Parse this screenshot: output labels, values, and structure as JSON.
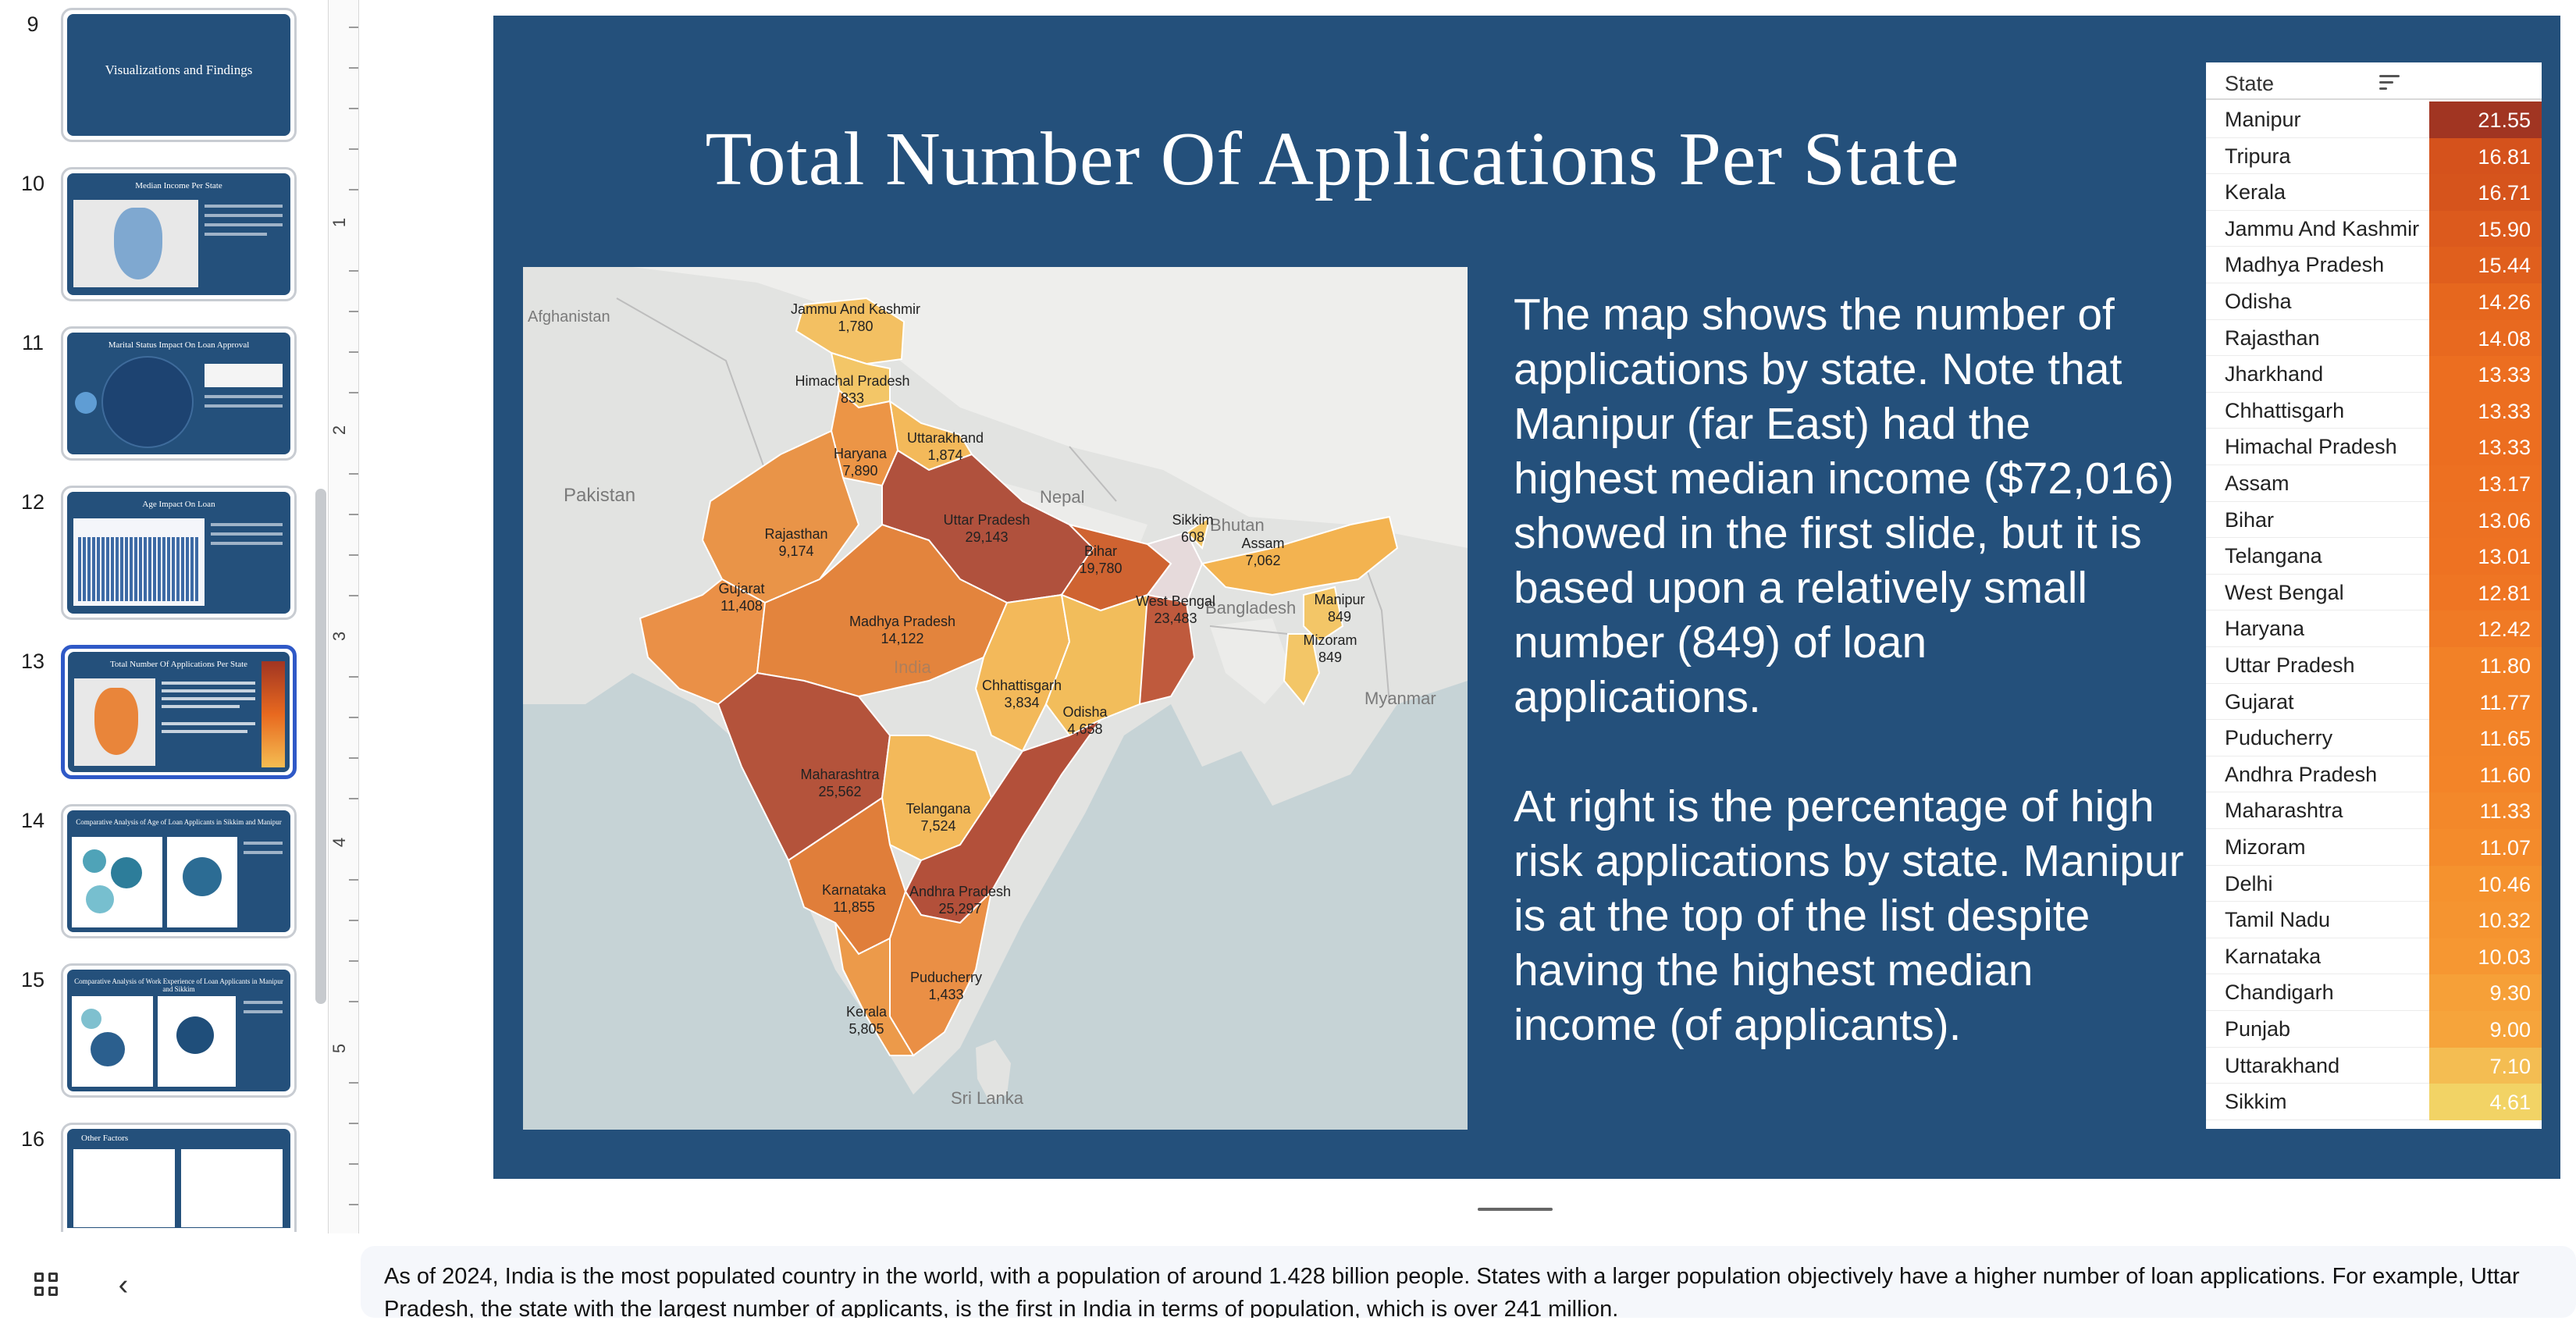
{
  "thumbnails": [
    {
      "num": "9",
      "title": "Visualizations and Findings"
    },
    {
      "num": "10",
      "title": "Median Income Per State"
    },
    {
      "num": "11",
      "title": "Marital Status Impact On Loan Approval"
    },
    {
      "num": "12",
      "title": "Age Impact On Loan"
    },
    {
      "num": "13",
      "title": "Total Number Of Applications Per State"
    },
    {
      "num": "14",
      "title": "Comparative Analysis of Age of Loan Applicants in Sikkim and Manipur"
    },
    {
      "num": "15",
      "title": "Comparative Analysis of Work Experience of Loan Applicants in Manipur and Sikkim"
    },
    {
      "num": "16",
      "title": "Other Factors"
    }
  ],
  "ruler": {
    "numbers": [
      "1",
      "2",
      "3",
      "4",
      "5"
    ]
  },
  "slide": {
    "title": "Total Number Of Applications Per State",
    "paragraph_1": "The map shows the number of applications by state.  Note that Manipur (far East) had the highest median income ($72,016) showed in the first slide, but it is based upon a relatively small number (849) of loan applications.",
    "paragraph_2": "At right is the percentage of high risk applications by state. Manipur is at the top of the list despite having the highest median income (of applicants)."
  },
  "map": {
    "countries": [
      "Afghanistan",
      "Pakistan",
      "Nepal",
      "Bhutan",
      "Bangladesh",
      "Myanmar",
      "Sri Lanka",
      "India"
    ],
    "states": [
      {
        "name": "Jammu And Kashmir",
        "value": "1,780"
      },
      {
        "name": "Himachal Pradesh",
        "value": "833"
      },
      {
        "name": "Uttarakhand",
        "value": "1,874"
      },
      {
        "name": "Haryana",
        "value": "7,890"
      },
      {
        "name": "Rajasthan",
        "value": "9,174"
      },
      {
        "name": "Uttar Pradesh",
        "value": "29,143"
      },
      {
        "name": "Bihar",
        "value": "19,780"
      },
      {
        "name": "Sikkim",
        "value": "608"
      },
      {
        "name": "Assam",
        "value": "7,062"
      },
      {
        "name": "West Bengal",
        "value": "23,483"
      },
      {
        "name": "Manipur",
        "value": "849"
      },
      {
        "name": "Mizoram",
        "value": "849"
      },
      {
        "name": "Gujarat",
        "value": "11,408"
      },
      {
        "name": "Madhya Pradesh",
        "value": "14,122"
      },
      {
        "name": "Chhattisgarh",
        "value": "3,834"
      },
      {
        "name": "Odisha",
        "value": "4,658"
      },
      {
        "name": "Maharashtra",
        "value": "25,562"
      },
      {
        "name": "Telangana",
        "value": "7,524"
      },
      {
        "name": "Karnataka",
        "value": "11,855"
      },
      {
        "name": "Andhra Pradesh",
        "value": "25,297"
      },
      {
        "name": "Puducherry",
        "value": "1,433"
      },
      {
        "name": "Kerala",
        "value": "5,805"
      }
    ]
  },
  "table": {
    "header": "State",
    "rows": [
      {
        "state": "Manipur",
        "value": "21.55",
        "color": "#a13522"
      },
      {
        "state": "Tripura",
        "value": "16.81",
        "color": "#d5521c"
      },
      {
        "state": "Kerala",
        "value": "16.71",
        "color": "#d6541c"
      },
      {
        "state": "Jammu And Kashmir",
        "value": "15.90",
        "color": "#dc5a1d"
      },
      {
        "state": "Madhya Pradesh",
        "value": "15.44",
        "color": "#e05f1d"
      },
      {
        "state": "Odisha",
        "value": "14.26",
        "color": "#e6671e"
      },
      {
        "state": "Rajasthan",
        "value": "14.08",
        "color": "#e8691f"
      },
      {
        "state": "Jharkhand",
        "value": "13.33",
        "color": "#ec6e20"
      },
      {
        "state": "Chhattisgarh",
        "value": "13.33",
        "color": "#ec6e20"
      },
      {
        "state": "Himachal Pradesh",
        "value": "13.33",
        "color": "#ec6e20"
      },
      {
        "state": "Assam",
        "value": "13.17",
        "color": "#ed7021"
      },
      {
        "state": "Bihar",
        "value": "13.06",
        "color": "#ed7122"
      },
      {
        "state": "Telangana",
        "value": "13.01",
        "color": "#ee7222"
      },
      {
        "state": "West Bengal",
        "value": "12.81",
        "color": "#ef7523"
      },
      {
        "state": "Haryana",
        "value": "12.42",
        "color": "#f07a25"
      },
      {
        "state": "Uttar Pradesh",
        "value": "11.80",
        "color": "#f28127"
      },
      {
        "state": "Gujarat",
        "value": "11.77",
        "color": "#f28127"
      },
      {
        "state": "Puducherry",
        "value": "11.65",
        "color": "#f28328"
      },
      {
        "state": "Andhra Pradesh",
        "value": "11.60",
        "color": "#f38428"
      },
      {
        "state": "Maharashtra",
        "value": "11.33",
        "color": "#f3882a"
      },
      {
        "state": "Mizoram",
        "value": "11.07",
        "color": "#f48b2b"
      },
      {
        "state": "Delhi",
        "value": "10.46",
        "color": "#f5922e"
      },
      {
        "state": "Tamil Nadu",
        "value": "10.32",
        "color": "#f59430"
      },
      {
        "state": "Karnataka",
        "value": "10.03",
        "color": "#f69732"
      },
      {
        "state": "Chandigarh",
        "value": "9.30",
        "color": "#f6a038"
      },
      {
        "state": "Punjab",
        "value": "9.00",
        "color": "#f6a43b"
      },
      {
        "state": "Uttarakhand",
        "value": "7.10",
        "color": "#f4bd52"
      },
      {
        "state": "Sikkim",
        "value": "4.61",
        "color": "#f2d365"
      }
    ]
  },
  "notes": {
    "text": "As of 2024, India is the most populated country in the world, with a population of around 1.428 billion people. States with a larger population objectively have a higher number of loan applications. For example, Uttar Pradesh, the state with the largest number of applicants, is the first in India in terms of population, which is over 241 million."
  },
  "colors": {
    "slide_bg": "#24507b",
    "selected_border": "#2f59c7"
  },
  "icons": [
    "grid-view-icon",
    "chevron-left-icon",
    "sort-icon"
  ]
}
